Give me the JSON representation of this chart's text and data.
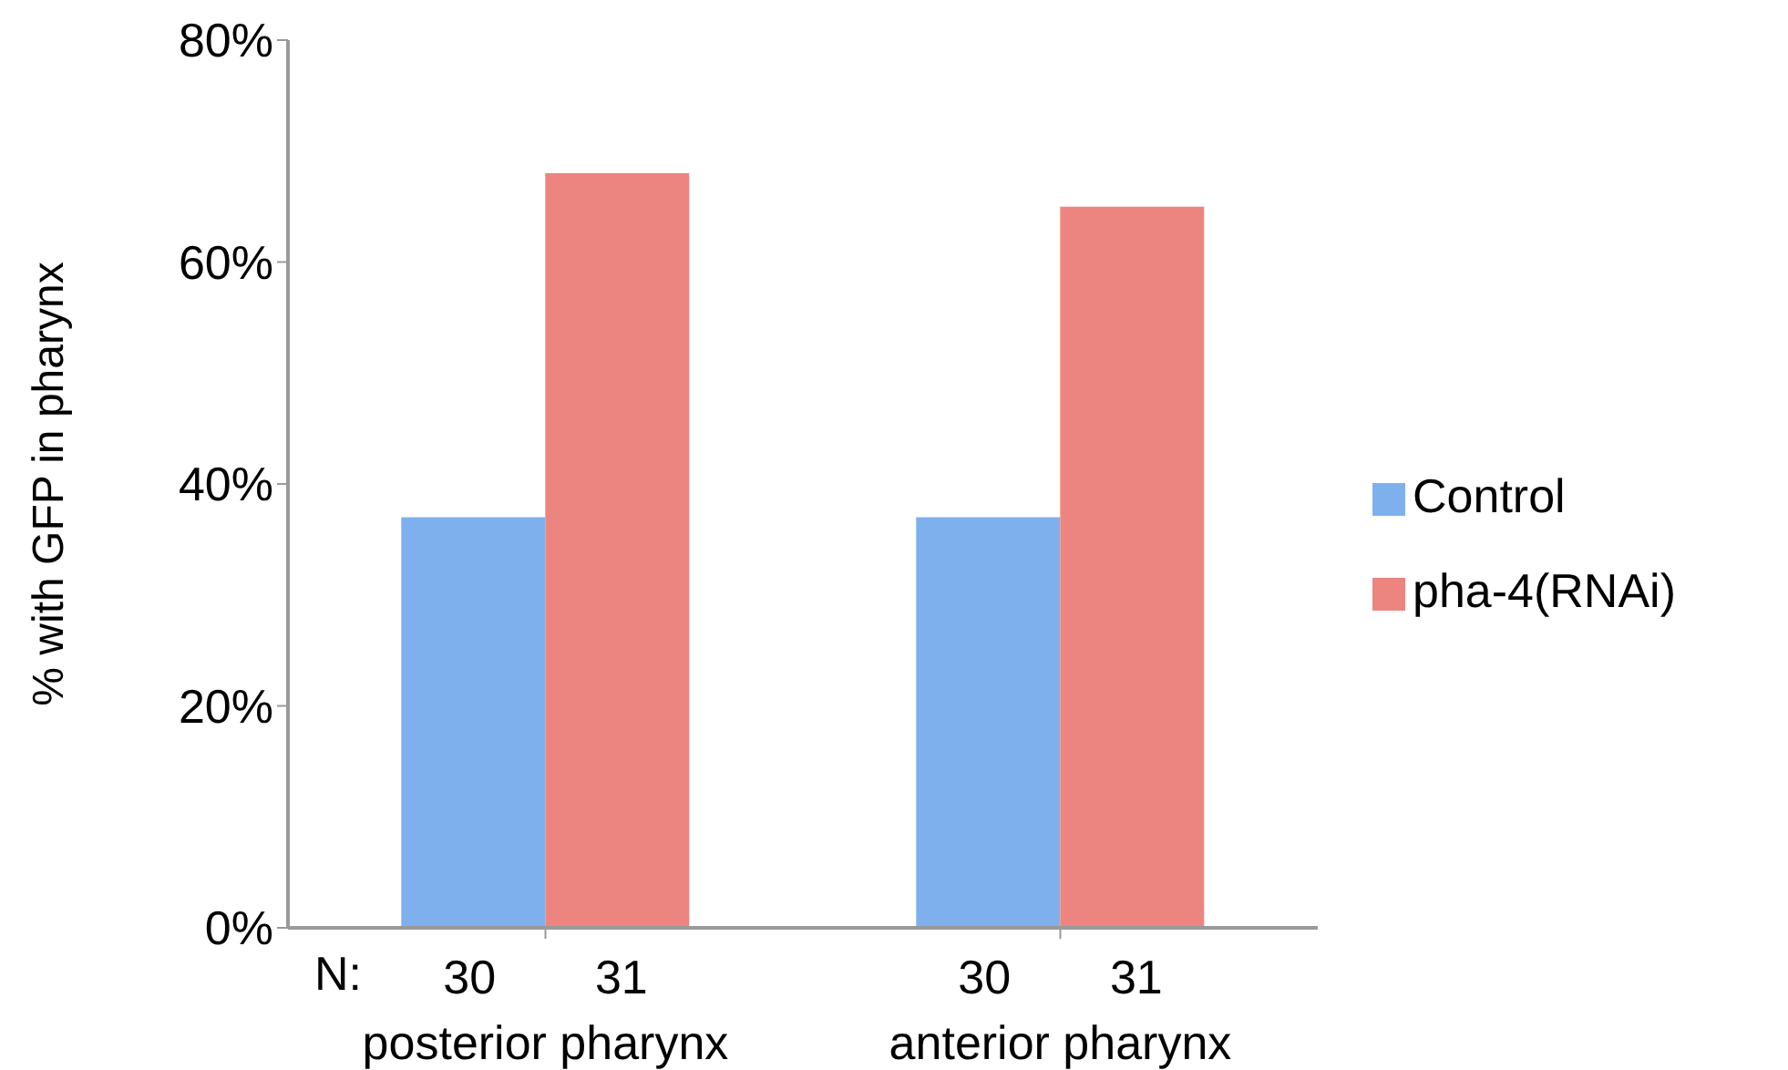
{
  "chart_data": {
    "type": "bar",
    "ylabel": "% with GFP in pharynx",
    "categories": [
      "posterior pharynx",
      "anterior pharynx"
    ],
    "series": [
      {
        "name": "Control",
        "color": "#7fb0ee",
        "values": [
          37,
          37
        ]
      },
      {
        "name": "pha-4(RNAi)",
        "color": "#ec8580",
        "values": [
          68,
          65
        ]
      }
    ],
    "ylim": [
      0,
      80
    ],
    "yticks": [
      {
        "value": 0,
        "label": "0%"
      },
      {
        "value": 20,
        "label": "20%"
      },
      {
        "value": 40,
        "label": "40%"
      },
      {
        "value": 60,
        "label": "60%"
      },
      {
        "value": 80,
        "label": "80%"
      }
    ],
    "grid": false,
    "legend": "right",
    "annotations": [
      "N:",
      "30",
      "31",
      "30",
      "31"
    ]
  }
}
